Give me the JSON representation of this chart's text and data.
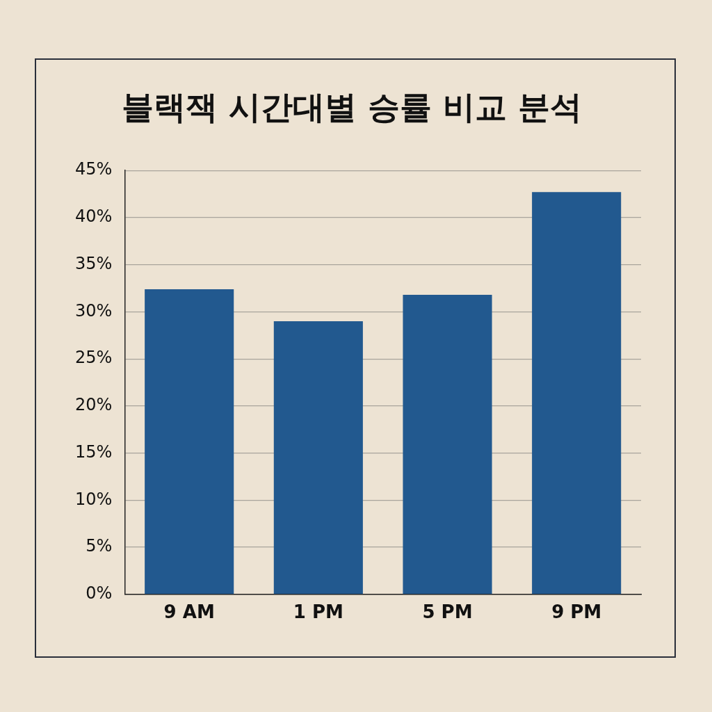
{
  "chart_data": {
    "type": "bar",
    "title": "블랙잭 시간대별 승률 비교 분석",
    "categories": [
      "9 AM",
      "1 PM",
      "5 PM",
      "9 PM"
    ],
    "values": [
      32.4,
      29.0,
      31.8,
      42.7
    ],
    "color": "#22598f",
    "ylim": [
      0,
      45
    ],
    "yticks": [
      {
        "value": 0,
        "label": "0%"
      },
      {
        "value": 5,
        "label": "5%"
      },
      {
        "value": 10,
        "label": "10%"
      },
      {
        "value": 15,
        "label": "15%"
      },
      {
        "value": 20,
        "label": "20%"
      },
      {
        "value": 25,
        "label": "25%"
      },
      {
        "value": 30,
        "label": "30%"
      },
      {
        "value": 35,
        "label": "35%"
      },
      {
        "value": 40,
        "label": "40%"
      },
      {
        "value": 45,
        "label": "45%"
      }
    ],
    "grid": "y",
    "legend": false
  }
}
